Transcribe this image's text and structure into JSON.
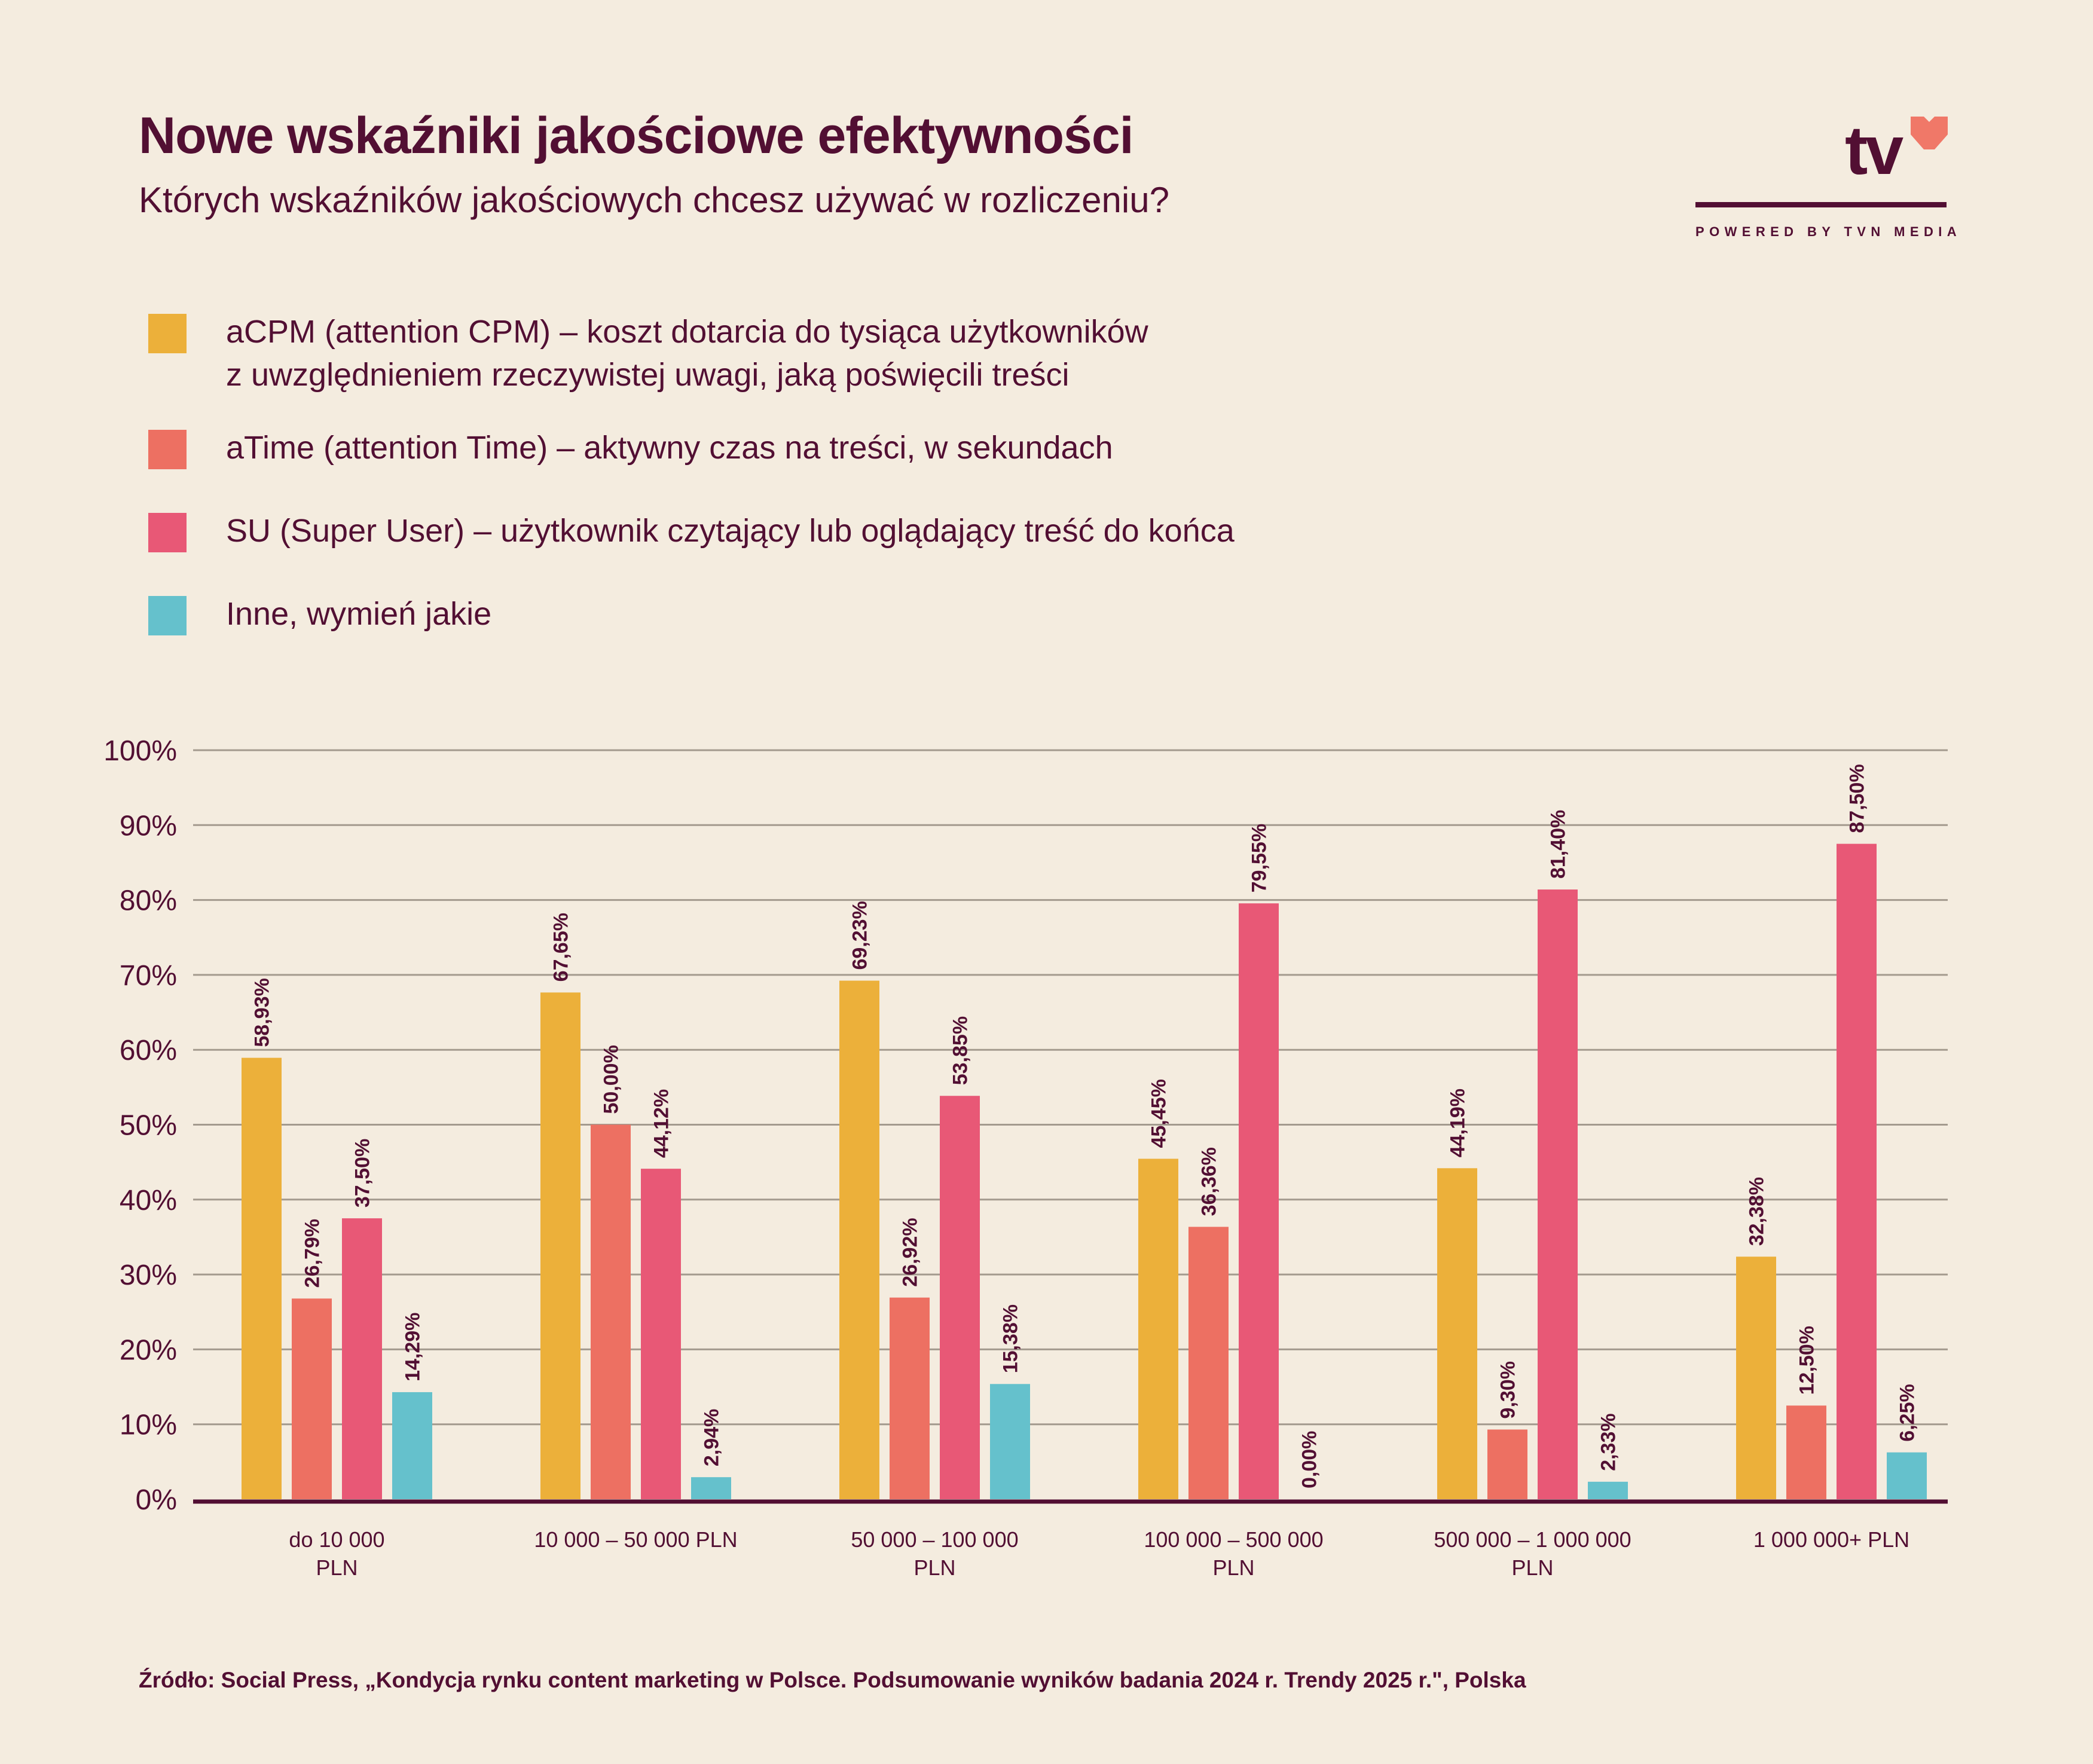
{
  "header": {
    "title": "Nowe wskaźniki jakościowe efektywności",
    "subtitle": "Których wskaźników jakościowych chcesz używać w rozliczeniu?"
  },
  "logo": {
    "wordmark": "tv",
    "tagline": "POWERED BY TVN MEDIA",
    "heart_color": "#f07868",
    "icon": "heart-icon"
  },
  "legend": [
    {
      "lines": [
        "aCPM (attention CPM) – koszt dotarcia do tysiąca użytkowników",
        "z uwzględnieniem rzeczywistej uwagi, jaką poświęcili treści"
      ],
      "color": "#ecb03a"
    },
    {
      "lines": [
        "aTime (attention Time) – aktywny czas na treści, w sekundach"
      ],
      "color": "#ed7062"
    },
    {
      "lines": [
        "SU (Super User) – użytkownik czytający lub oglądający treść do końca"
      ],
      "color": "#e85876"
    },
    {
      "lines": [
        "Inne, wymień jakie"
      ],
      "color": "#65c1cc"
    }
  ],
  "chart_data": {
    "type": "bar",
    "title": "Nowe wskaźniki jakościowe efektywności",
    "subtitle": "Których wskaźników jakościowych chcesz używać w rozliczeniu?",
    "xlabel": "",
    "ylabel": "",
    "ylim": [
      0,
      100
    ],
    "yticks": [
      "0%",
      "10%",
      "20%",
      "30%",
      "40%",
      "50%",
      "60%",
      "70%",
      "80%",
      "90%",
      "100%"
    ],
    "grid": true,
    "legend_position": "top-left",
    "categories": [
      [
        "do 10 000",
        "PLN"
      ],
      [
        "10 000 – 50 000 PLN"
      ],
      [
        "50 000 – 100 000",
        "PLN"
      ],
      [
        "100 000 – 500 000",
        "PLN"
      ],
      [
        "500 000 – 1 000 000",
        "PLN"
      ],
      [
        "1 000 000+ PLN"
      ]
    ],
    "series": [
      {
        "name": "aCPM",
        "color": "#ecb03a",
        "values": [
          58.93,
          67.65,
          69.23,
          45.45,
          44.19,
          32.38
        ],
        "labels": [
          "58,93%",
          "67,65%",
          "69,23%",
          "45,45%",
          "44,19%",
          "32,38%"
        ]
      },
      {
        "name": "aTime",
        "color": "#ed7062",
        "values": [
          26.79,
          50.0,
          26.92,
          36.36,
          9.3,
          12.5
        ],
        "labels": [
          "26,79%",
          "50,00%",
          "26,92%",
          "36,36%",
          "9,30%",
          "12,50%"
        ]
      },
      {
        "name": "SU",
        "color": "#e85876",
        "values": [
          37.5,
          44.12,
          53.85,
          79.55,
          81.4,
          87.5
        ],
        "labels": [
          "37,50%",
          "44,12%",
          "53,85%",
          "79,55%",
          "81,40%",
          "87,50%"
        ]
      },
      {
        "name": "Inne",
        "color": "#65c1cc",
        "values": [
          14.29,
          2.94,
          15.38,
          0.0,
          2.33,
          6.25
        ],
        "labels": [
          "14,29%",
          "2,94%",
          "15,38%",
          "0,00%",
          "2,33%",
          "6,25%"
        ]
      }
    ],
    "colors": {
      "text": "#520f33",
      "grid": "#a39a8e",
      "axis": "#520f33",
      "background": "#f4ecdf"
    }
  },
  "footer": {
    "source": "Źródło: Social Press, „Kondycja rynku content marketing w Polsce. Podsumowanie wyników badania 2024 r. Trendy 2025 r.\", Polska"
  }
}
